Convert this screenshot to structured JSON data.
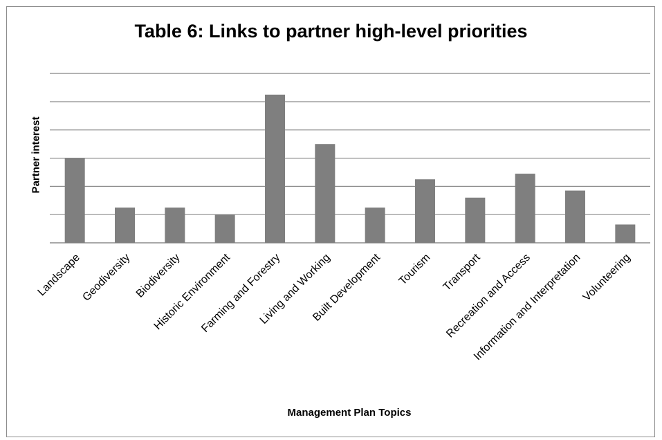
{
  "chart_data": {
    "type": "bar",
    "title": "Table 6: Links to partner high-level priorities",
    "xlabel": "Management Plan Topics",
    "ylabel": "Partner interest",
    "categories": [
      "Landscape",
      "Geodiversity",
      "Biodiversity",
      "Historic Environment",
      "Farming and Forestry",
      "Living and Working",
      "Built Development",
      "Tourism",
      "Transport",
      "Recreation and Access",
      "Information and Interpretation",
      "Volunteering"
    ],
    "values": [
      6,
      2.5,
      2.5,
      2,
      10.5,
      7,
      2.5,
      4.5,
      3.2,
      4.9,
      3.7,
      1.3
    ],
    "ylim": [
      0,
      12.5
    ],
    "yticks": [
      0,
      2,
      4,
      6,
      8,
      10,
      12
    ],
    "grid": true,
    "legend": "none",
    "bar_color": "#7f7f7f",
    "grid_color": "#8c8c8c"
  }
}
